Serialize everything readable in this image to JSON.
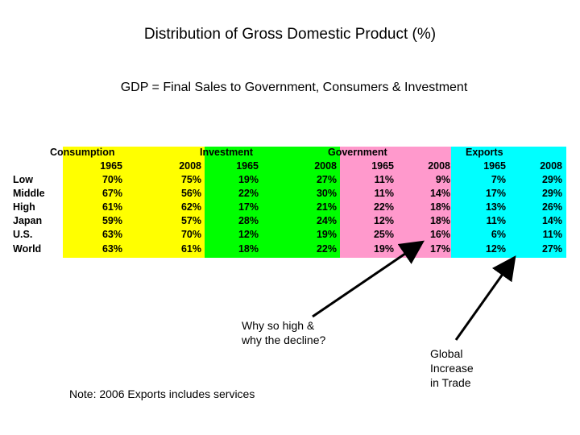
{
  "title": "Distribution of Gross Domestic Product (%)",
  "subtitle": "GDP = Final Sales to Government, Consumers & Investment",
  "colors": {
    "consumption": "#ffff00",
    "investment": "#00ff00",
    "government": "#ff99cc",
    "exports": "#00ffff"
  },
  "table": {
    "groups": [
      "Consumption",
      "Investment",
      "Government",
      "Exports"
    ],
    "years": [
      "1965",
      "2008",
      "1965",
      "2008",
      "1965",
      "2008",
      "1965",
      "2008"
    ],
    "rows": [
      {
        "label": "Low",
        "values": [
          "70%",
          "75%",
          "19%",
          "27%",
          "11%",
          "9%",
          "7%",
          "29%"
        ]
      },
      {
        "label": "Middle",
        "values": [
          "67%",
          "56%",
          "22%",
          "30%",
          "11%",
          "14%",
          "17%",
          "29%"
        ]
      },
      {
        "label": "High",
        "values": [
          "61%",
          "62%",
          "17%",
          "21%",
          "22%",
          "18%",
          "13%",
          "26%"
        ]
      },
      {
        "label": "Japan",
        "values": [
          "59%",
          "57%",
          "28%",
          "24%",
          "12%",
          "18%",
          "11%",
          "14%"
        ]
      },
      {
        "label": "U.S.",
        "values": [
          "63%",
          "70%",
          "12%",
          "19%",
          "25%",
          "16%",
          "6%",
          "11%"
        ]
      },
      {
        "label": "World",
        "values": [
          "63%",
          "61%",
          "18%",
          "22%",
          "19%",
          "17%",
          "12%",
          "27%"
        ]
      }
    ]
  },
  "annotations": {
    "question_line1": "Why so high &",
    "question_line2": "why the decline?",
    "trade_line1": "Global",
    "trade_line2": "Increase",
    "trade_line3": "in Trade",
    "note": "Note: 2006   Exports includes services"
  }
}
